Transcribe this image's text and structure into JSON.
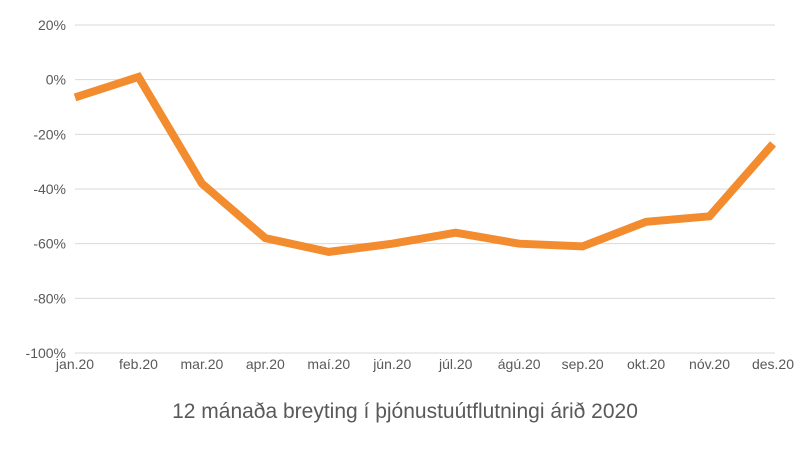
{
  "chart_data": {
    "type": "line",
    "title": "12 mánaða breyting í þjónustuútflutningi árið 2020",
    "xlabel": "",
    "ylabel": "",
    "categories": [
      "jan.20",
      "feb.20",
      "mar.20",
      "apr.20",
      "maí.20",
      "jún.20",
      "júl.20",
      "ágú.20",
      "sep.20",
      "okt.20",
      "nóv.20",
      "des.20"
    ],
    "series": [
      {
        "name": "12 mánaða breyting",
        "color": "#f28c2e",
        "values": [
          -6.5,
          1,
          -38,
          -58,
          -63,
          -60,
          -56,
          -60,
          -61,
          -52,
          -50,
          -23.5
        ]
      }
    ],
    "yticks": [
      20,
      0,
      -20,
      -40,
      -60,
      -80,
      -100
    ],
    "ytick_labels": [
      "20%",
      "0%",
      "-20%",
      "-40%",
      "-60%",
      "-80%",
      "-100%"
    ],
    "ylim": [
      -100,
      20
    ],
    "grid": true,
    "legend": "none"
  }
}
